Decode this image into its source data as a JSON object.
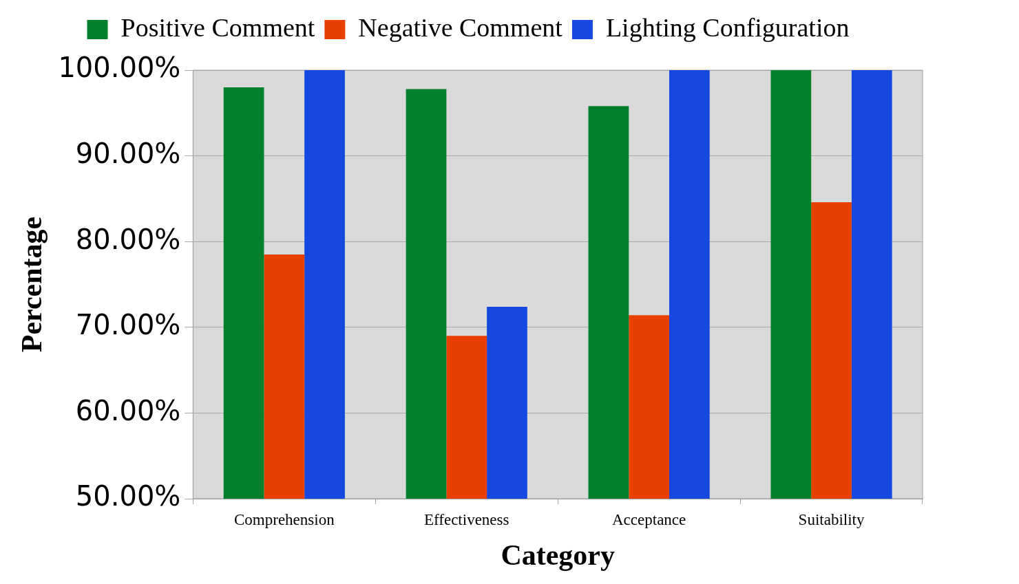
{
  "chart_data": {
    "type": "bar",
    "xlabel": "Category",
    "ylabel": "Percentage",
    "categories": [
      "Comprehension",
      "Effectiveness",
      "Acceptance",
      "Suitability"
    ],
    "series": [
      {
        "name": "Positive Comment",
        "color": "#00802b",
        "values": [
          98.0,
          97.8,
          95.8,
          100
        ]
      },
      {
        "name": "Negative Comment",
        "color": "#e84000",
        "values": [
          78.5,
          69.0,
          71.4,
          84.6
        ]
      },
      {
        "name": "Lighting Configuration",
        "color": "#1648e0",
        "values": [
          100,
          72.4,
          100,
          100
        ]
      }
    ],
    "ylim": [
      50,
      100
    ],
    "yticks": [
      {
        "value": 50,
        "label": "50.00%"
      },
      {
        "value": 60,
        "label": "60.00%"
      },
      {
        "value": 70,
        "label": "70.00%"
      },
      {
        "value": 80,
        "label": "80.00%"
      },
      {
        "value": 90,
        "label": "90.00%"
      },
      {
        "value": 100,
        "label": "100.00%"
      }
    ],
    "grid": "y",
    "legend": "top"
  }
}
